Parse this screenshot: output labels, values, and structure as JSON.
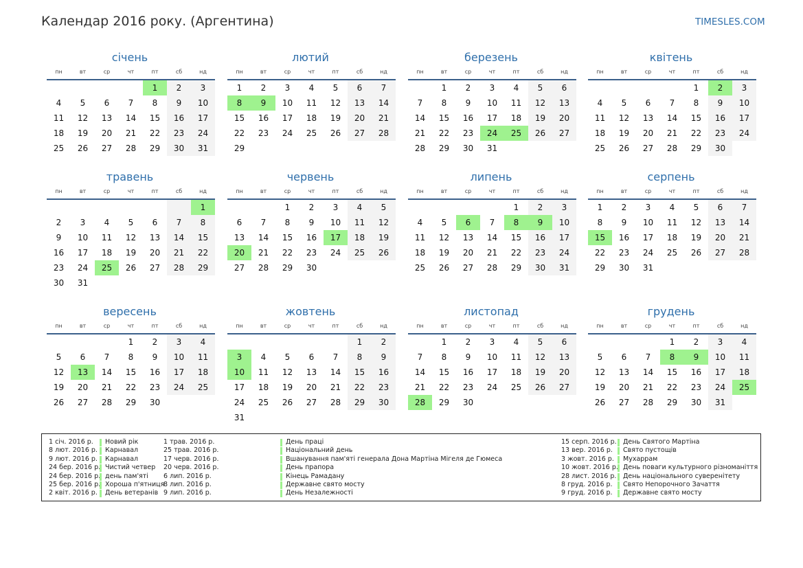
{
  "header": {
    "title": "Календар 2016 року. (Аргентина)",
    "site": "TIMESLES.COM"
  },
  "weekdays": [
    "пн",
    "вт",
    "ср",
    "чт",
    "пт",
    "сб",
    "нд"
  ],
  "months": [
    {
      "name": "січень",
      "start": 4,
      "days": 31,
      "holidays": [
        1
      ]
    },
    {
      "name": "лютий",
      "start": 0,
      "days": 29,
      "holidays": [
        8,
        9
      ]
    },
    {
      "name": "березень",
      "start": 1,
      "days": 31,
      "holidays": [
        24,
        25
      ]
    },
    {
      "name": "квітень",
      "start": 4,
      "days": 30,
      "holidays": [
        2
      ]
    },
    {
      "name": "травень",
      "start": 6,
      "days": 31,
      "holidays": [
        1,
        25
      ]
    },
    {
      "name": "червень",
      "start": 2,
      "days": 30,
      "holidays": [
        17,
        20
      ]
    },
    {
      "name": "липень",
      "start": 4,
      "days": 31,
      "holidays": [
        6,
        8,
        9
      ]
    },
    {
      "name": "серпень",
      "start": 0,
      "days": 31,
      "holidays": [
        15
      ]
    },
    {
      "name": "вересень",
      "start": 3,
      "days": 30,
      "holidays": [
        13
      ]
    },
    {
      "name": "жовтень",
      "start": 5,
      "days": 31,
      "holidays": [
        3,
        10
      ]
    },
    {
      "name": "листопад",
      "start": 1,
      "days": 30,
      "holidays": [
        28
      ]
    },
    {
      "name": "грудень",
      "start": 3,
      "days": 31,
      "holidays": [
        8,
        9,
        25
      ]
    }
  ],
  "holidays": {
    "col1": [
      {
        "date": "1 січ. 2016 р.",
        "name": "Новий рік"
      },
      {
        "date": "8 лют. 2016 р.",
        "name": "Карнавал"
      },
      {
        "date": "9 лют. 2016 р.",
        "name": "Карнавал"
      },
      {
        "date": "24 бер. 2016 р.",
        "name": "Чистий четвер"
      },
      {
        "date": "24 бер. 2016 р.",
        "name": "день пам'яті"
      },
      {
        "date": "25 бер. 2016 р.",
        "name": "Хороша п'ятниця"
      },
      {
        "date": "2 квіт. 2016 р.",
        "name": "День ветеранів"
      }
    ],
    "col2": [
      {
        "date": "1 трав. 2016 р.",
        "name": "День праці"
      },
      {
        "date": "25 трав. 2016 р.",
        "name": "Національний день"
      },
      {
        "date": "17 черв. 2016 р.",
        "name": "Вшанування пам'яті генерала Дона Мартіна Мігеля де Гюмеса"
      },
      {
        "date": "20 черв. 2016 р.",
        "name": "День прапора"
      },
      {
        "date": "6 лип. 2016 р.",
        "name": "Кінець Рамадану"
      },
      {
        "date": "8 лип. 2016 р.",
        "name": "Державне свято мосту"
      },
      {
        "date": "9 лип. 2016 р.",
        "name": "День Незалежності"
      }
    ],
    "col3": [
      {
        "date": "15 серп. 2016 р.",
        "name": "День Святого Мартіна"
      },
      {
        "date": "13 вер. 2016 р.",
        "name": "Свято пустощів"
      },
      {
        "date": "3 жовт. 2016 р.",
        "name": "Мухаррам"
      },
      {
        "date": "10 жовт. 2016 р.",
        "name": "День поваги культурного різноманіття"
      },
      {
        "date": "28 лист. 2016 р.",
        "name": "День національного суверенітету"
      },
      {
        "date": "8 груд. 2016 р.",
        "name": "Свято Непорочного Зачаття"
      },
      {
        "date": "9 груд. 2016 р.",
        "name": "Державне свято мосту"
      }
    ]
  }
}
